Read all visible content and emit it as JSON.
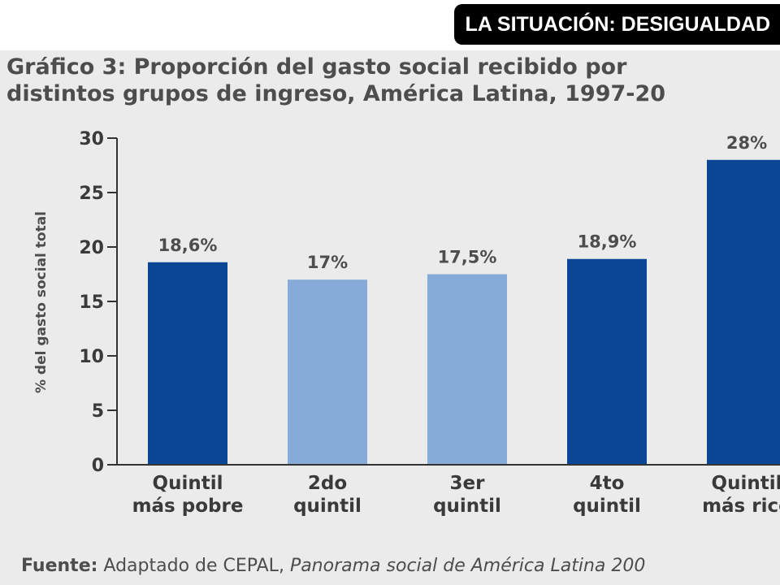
{
  "header": {
    "badge": "LA SITUACIÓN: DESIGUALDAD"
  },
  "figure": {
    "title_line1": "Gráfico 3: Proporción del gasto social recibido por",
    "title_line2": "distintos grupos de ingreso, América Latina, 1997-20",
    "source_label": "Fuente:",
    "source_text": "Adaptado de CEPAL,",
    "source_publication": "Panorama social de América Latina 200"
  },
  "colors": {
    "dark_bar": "#0b4596",
    "light_bar": "#86abd8",
    "axis": "#333333"
  },
  "chart_data": {
    "type": "bar",
    "categories": [
      [
        "Quintil",
        "más pobre"
      ],
      [
        "2do",
        "quintil"
      ],
      [
        "3er",
        "quintil"
      ],
      [
        "4to",
        "quintil"
      ],
      [
        "Quintil",
        "más rico"
      ]
    ],
    "values": [
      18.6,
      17,
      17.5,
      18.9,
      28
    ],
    "data_labels": [
      "18,6%",
      "17%",
      "17,5%",
      "18,9%",
      "28%"
    ],
    "highlight": [
      true,
      false,
      false,
      true,
      true
    ],
    "ylabel": "% del gasto social total",
    "ylim": [
      0,
      30
    ],
    "yticks": [
      0,
      5,
      10,
      15,
      20,
      25,
      30
    ],
    "grid": false
  }
}
